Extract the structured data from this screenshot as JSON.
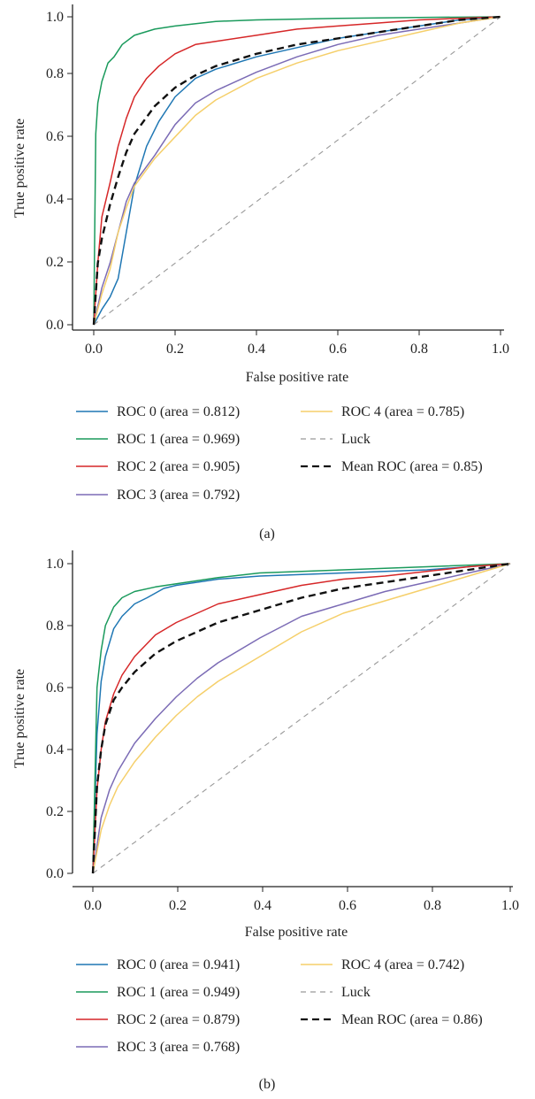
{
  "chart_data": [
    {
      "type": "line",
      "caption": "(a)",
      "xlabel": "False positive rate",
      "ylabel": "True positive rate",
      "xlim": [
        0,
        1
      ],
      "ylim": [
        0,
        1
      ],
      "xticks": [
        "0.0",
        "0.2",
        "0.4",
        "0.6",
        "0.8",
        "1.0"
      ],
      "yticks": [
        "0.0",
        "0.2",
        "0.4",
        "0.6",
        "0.8",
        "1.0"
      ],
      "grid": false,
      "legend": {
        "placement": "below",
        "columns": 2
      },
      "series": [
        {
          "name": "ROC 0 (area = 0.812)",
          "color": "#1f77b4",
          "dash": "solid",
          "x": [
            0,
            0.02,
            0.04,
            0.06,
            0.08,
            0.1,
            0.13,
            0.16,
            0.2,
            0.25,
            0.3,
            0.4,
            0.5,
            0.6,
            0.7,
            0.8,
            0.9,
            1.0
          ],
          "y": [
            0,
            0.05,
            0.09,
            0.15,
            0.3,
            0.45,
            0.58,
            0.66,
            0.74,
            0.8,
            0.83,
            0.87,
            0.9,
            0.93,
            0.95,
            0.97,
            0.99,
            1.0
          ]
        },
        {
          "name": "ROC 1 (area = 0.969)",
          "color": "#1a9a5c",
          "dash": "solid",
          "x": [
            0,
            0.005,
            0.01,
            0.02,
            0.035,
            0.05,
            0.07,
            0.1,
            0.15,
            0.2,
            0.3,
            0.4,
            0.6,
            0.8,
            1.0
          ],
          "y": [
            0,
            0.62,
            0.72,
            0.79,
            0.85,
            0.87,
            0.91,
            0.94,
            0.96,
            0.97,
            0.985,
            0.99,
            0.995,
            0.998,
            1.0
          ]
        },
        {
          "name": "ROC 2 (area = 0.905)",
          "color": "#d62728",
          "dash": "solid",
          "x": [
            0,
            0.01,
            0.02,
            0.04,
            0.06,
            0.08,
            0.1,
            0.13,
            0.16,
            0.2,
            0.25,
            0.3,
            0.4,
            0.5,
            0.6,
            0.7,
            0.8,
            0.9,
            1.0
          ],
          "y": [
            0,
            0.2,
            0.35,
            0.46,
            0.58,
            0.67,
            0.74,
            0.8,
            0.84,
            0.88,
            0.91,
            0.92,
            0.94,
            0.96,
            0.97,
            0.98,
            0.99,
            0.995,
            1.0
          ]
        },
        {
          "name": "ROC 3 (area = 0.792)",
          "color": "#7b6bb5",
          "dash": "solid",
          "x": [
            0,
            0.02,
            0.04,
            0.06,
            0.08,
            0.1,
            0.15,
            0.2,
            0.25,
            0.3,
            0.4,
            0.5,
            0.6,
            0.7,
            0.8,
            0.9,
            1.0
          ],
          "y": [
            0,
            0.12,
            0.2,
            0.3,
            0.4,
            0.46,
            0.55,
            0.65,
            0.72,
            0.76,
            0.82,
            0.87,
            0.91,
            0.94,
            0.96,
            0.98,
            1.0
          ]
        },
        {
          "name": "ROC 4 (area = 0.785)",
          "color": "#f5cf6a",
          "dash": "solid",
          "x": [
            0,
            0.02,
            0.04,
            0.06,
            0.08,
            0.1,
            0.15,
            0.2,
            0.25,
            0.3,
            0.4,
            0.5,
            0.6,
            0.7,
            0.8,
            0.9,
            1.0
          ],
          "y": [
            0,
            0.1,
            0.18,
            0.3,
            0.38,
            0.45,
            0.54,
            0.61,
            0.68,
            0.73,
            0.8,
            0.85,
            0.89,
            0.92,
            0.95,
            0.98,
            1.0
          ]
        },
        {
          "name": "Luck",
          "color": "#999999",
          "dash": "luck",
          "x": [
            0,
            1
          ],
          "y": [
            0,
            1
          ]
        },
        {
          "name": "Mean ROC (area = 0.85)",
          "color": "#111111",
          "dash": "mean",
          "x": [
            0,
            0.01,
            0.02,
            0.04,
            0.06,
            0.08,
            0.1,
            0.15,
            0.2,
            0.25,
            0.3,
            0.4,
            0.5,
            0.6,
            0.7,
            0.8,
            0.9,
            1.0
          ],
          "y": [
            0,
            0.2,
            0.28,
            0.39,
            0.48,
            0.56,
            0.62,
            0.71,
            0.77,
            0.81,
            0.84,
            0.88,
            0.91,
            0.93,
            0.95,
            0.97,
            0.99,
            1.0
          ]
        }
      ]
    },
    {
      "type": "line",
      "caption": "(b)",
      "xlabel": "False positive rate",
      "ylabel": "True positive rate",
      "xlim": [
        0,
        1
      ],
      "ylim": [
        0,
        1
      ],
      "xticks": [
        "0.0",
        "0.2",
        "0.4",
        "0.6",
        "0.8",
        "1.0"
      ],
      "yticks": [
        "0.0",
        "0.2",
        "0.4",
        "0.6",
        "0.8",
        "1.0"
      ],
      "grid": false,
      "legend": {
        "placement": "below",
        "columns": 2
      },
      "series": [
        {
          "name": "ROC 0 (area = 0.941)",
          "color": "#1f77b4",
          "dash": "solid",
          "x": [
            0,
            0.01,
            0.02,
            0.03,
            0.05,
            0.07,
            0.1,
            0.13,
            0.17,
            0.2,
            0.3,
            0.4,
            0.6,
            0.8,
            1.0
          ],
          "y": [
            0,
            0.45,
            0.62,
            0.7,
            0.79,
            0.83,
            0.87,
            0.89,
            0.92,
            0.93,
            0.95,
            0.96,
            0.97,
            0.98,
            1.0
          ]
        },
        {
          "name": "ROC 1 (area = 0.949)",
          "color": "#1a9a5c",
          "dash": "solid",
          "x": [
            0,
            0.01,
            0.02,
            0.03,
            0.05,
            0.07,
            0.1,
            0.15,
            0.2,
            0.3,
            0.4,
            0.6,
            0.8,
            1.0
          ],
          "y": [
            0,
            0.6,
            0.72,
            0.8,
            0.86,
            0.89,
            0.91,
            0.925,
            0.935,
            0.955,
            0.97,
            0.98,
            0.99,
            1.0
          ]
        },
        {
          "name": "ROC 2 (area = 0.879)",
          "color": "#d62728",
          "dash": "solid",
          "x": [
            0,
            0.01,
            0.02,
            0.03,
            0.05,
            0.07,
            0.1,
            0.15,
            0.2,
            0.25,
            0.3,
            0.4,
            0.5,
            0.6,
            0.7,
            0.8,
            0.9,
            1.0
          ],
          "y": [
            0,
            0.27,
            0.4,
            0.49,
            0.58,
            0.64,
            0.7,
            0.77,
            0.81,
            0.84,
            0.87,
            0.9,
            0.93,
            0.95,
            0.96,
            0.975,
            0.99,
            1.0
          ]
        },
        {
          "name": "ROC 3 (area = 0.768)",
          "color": "#7b6bb5",
          "dash": "solid",
          "x": [
            0,
            0.02,
            0.04,
            0.06,
            0.1,
            0.15,
            0.2,
            0.25,
            0.3,
            0.4,
            0.5,
            0.6,
            0.7,
            0.8,
            0.9,
            1.0
          ],
          "y": [
            0,
            0.18,
            0.27,
            0.33,
            0.42,
            0.5,
            0.57,
            0.63,
            0.68,
            0.76,
            0.83,
            0.87,
            0.91,
            0.94,
            0.97,
            1.0
          ]
        },
        {
          "name": "ROC 4 (area = 0.742)",
          "color": "#f5cf6a",
          "dash": "solid",
          "x": [
            0,
            0.02,
            0.04,
            0.06,
            0.1,
            0.15,
            0.2,
            0.25,
            0.3,
            0.4,
            0.5,
            0.6,
            0.7,
            0.8,
            0.9,
            1.0
          ],
          "y": [
            0,
            0.14,
            0.22,
            0.28,
            0.36,
            0.44,
            0.51,
            0.57,
            0.62,
            0.7,
            0.78,
            0.84,
            0.88,
            0.92,
            0.96,
            1.0
          ]
        },
        {
          "name": "Luck",
          "color": "#999999",
          "dash": "luck",
          "x": [
            0,
            1
          ],
          "y": [
            0,
            1
          ]
        },
        {
          "name": "Mean ROC (area = 0.86)",
          "color": "#111111",
          "dash": "mean",
          "x": [
            0,
            0.01,
            0.02,
            0.03,
            0.05,
            0.07,
            0.1,
            0.15,
            0.2,
            0.25,
            0.3,
            0.4,
            0.5,
            0.6,
            0.7,
            0.8,
            0.9,
            1.0
          ],
          "y": [
            0,
            0.28,
            0.4,
            0.48,
            0.56,
            0.6,
            0.65,
            0.71,
            0.75,
            0.78,
            0.81,
            0.85,
            0.89,
            0.92,
            0.94,
            0.96,
            0.98,
            1.0
          ]
        }
      ]
    }
  ]
}
